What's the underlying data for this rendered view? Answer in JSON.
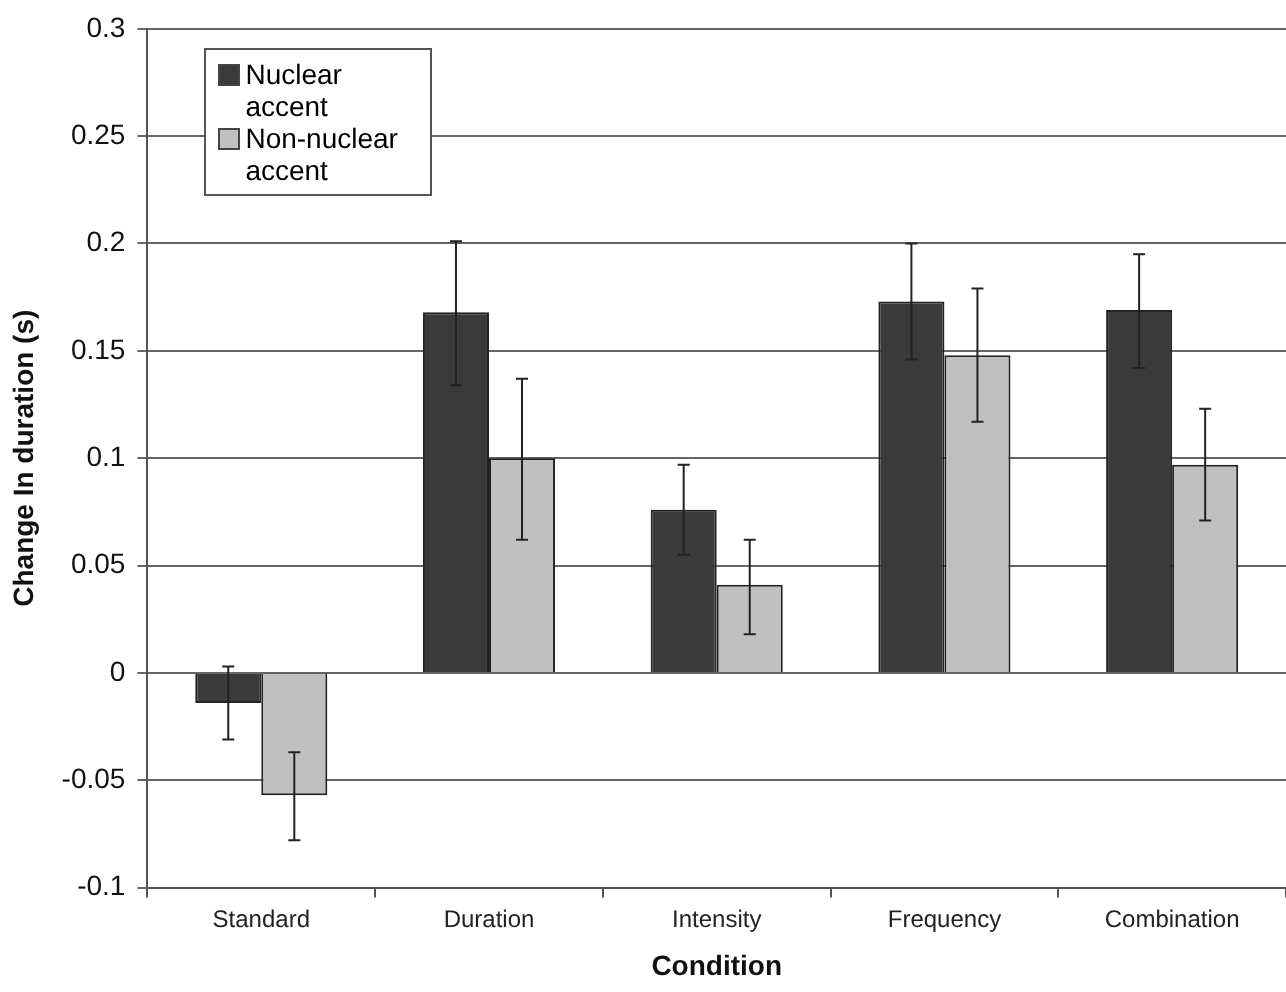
{
  "chart_data": {
    "type": "bar",
    "xlabel": "Condition",
    "ylabel": "Change In duration (s)",
    "categories": [
      "Standard",
      "Duration",
      "Intensity",
      "Frequency",
      "Combination"
    ],
    "series": [
      {
        "name": "Nuclear accent",
        "color": "#3a3a3a",
        "values": [
          -0.014,
          0.168,
          0.076,
          0.173,
          0.169
        ],
        "errors": [
          [
            -0.031,
            0.003
          ],
          [
            0.134,
            0.201
          ],
          [
            0.055,
            0.097
          ],
          [
            0.146,
            0.2
          ],
          [
            0.142,
            0.195
          ]
        ]
      },
      {
        "name": "Non-nuclear accent",
        "color": "#c0c0c0",
        "values": [
          -0.057,
          0.1,
          0.041,
          0.148,
          0.097
        ],
        "errors": [
          [
            -0.078,
            -0.037
          ],
          [
            0.062,
            0.137
          ],
          [
            0.018,
            0.062
          ],
          [
            0.117,
            0.179
          ],
          [
            0.071,
            0.123
          ]
        ]
      }
    ],
    "ylim": [
      -0.1,
      0.3
    ],
    "yticks": [
      -0.1,
      -0.05,
      0,
      0.05,
      0.1,
      0.15,
      0.2,
      0.25,
      0.3
    ],
    "grid": "y",
    "legend": "top left"
  }
}
